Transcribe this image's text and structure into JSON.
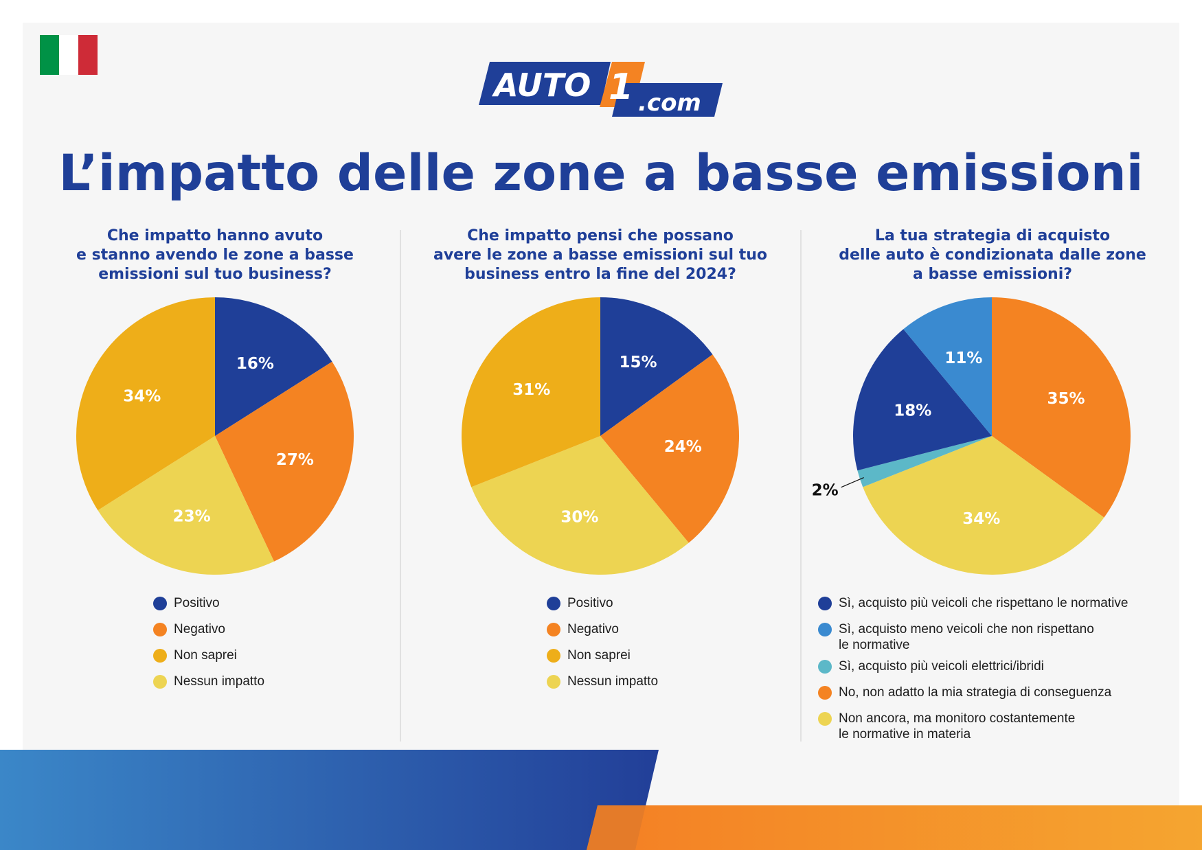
{
  "logo": {
    "brand": "AUTO",
    "number": "1",
    "domain": ".com"
  },
  "title": "L’impatto delle zone a basse emissioni",
  "colors": {
    "dark_blue": "#1f3f98",
    "light_blue": "#3a8ad0",
    "teal": "#5cb8c8",
    "orange": "#f48322",
    "amber": "#eeae19",
    "yellow": "#edd452",
    "flag_green": "#009246",
    "flag_white": "#ffffff",
    "flag_red": "#ce2b37"
  },
  "chart_data": [
    {
      "type": "pie",
      "title_lines": [
        "Che impatto hanno avuto",
        "e stanno avendo le zone a basse",
        "emissioni sul tuo business?"
      ],
      "categories": [
        "Positivo",
        "Negativo",
        "Nessun impatto",
        "Non saprei"
      ],
      "values": [
        16,
        27,
        23,
        34
      ],
      "labels": [
        "16%",
        "27%",
        "23%",
        "34%"
      ],
      "colors": [
        "#1f3f98",
        "#f48322",
        "#edd452",
        "#eeae19"
      ],
      "legend": [
        {
          "label_lines": [
            "Positivo"
          ],
          "color": "#1f3f98"
        },
        {
          "label_lines": [
            "Negativo"
          ],
          "color": "#f48322"
        },
        {
          "label_lines": [
            "Non saprei"
          ],
          "color": "#eeae19"
        },
        {
          "label_lines": [
            "Nessun impatto"
          ],
          "color": "#edd452"
        }
      ]
    },
    {
      "type": "pie",
      "title_lines": [
        "Che impatto pensi che possano",
        "avere le zone a basse emissioni sul tuo",
        "business entro la fine del 2024?"
      ],
      "categories": [
        "Positivo",
        "Negativo",
        "Nessun impatto",
        "Non saprei"
      ],
      "values": [
        15,
        24,
        30,
        31
      ],
      "labels": [
        "15%",
        "24%",
        "30%",
        "31%"
      ],
      "colors": [
        "#1f3f98",
        "#f48322",
        "#edd452",
        "#eeae19"
      ],
      "legend": [
        {
          "label_lines": [
            "Positivo"
          ],
          "color": "#1f3f98"
        },
        {
          "label_lines": [
            "Negativo"
          ],
          "color": "#f48322"
        },
        {
          "label_lines": [
            "Non saprei"
          ],
          "color": "#eeae19"
        },
        {
          "label_lines": [
            "Nessun impatto"
          ],
          "color": "#edd452"
        }
      ]
    },
    {
      "type": "pie",
      "title_lines": [
        "La tua strategia di acquisto",
        "delle auto è condizionata dalle zone",
        "a basse emissioni?"
      ],
      "categories": [
        "No, non adatto la mia strategia di conseguenza",
        "Non ancora, ma monitoro costantemente le normative in materia",
        "Sì, acquisto più veicoli elettrici/ibridi",
        "Sì, acquisto più veicoli che rispettano le normative",
        "Sì, acquisto meno veicoli che non rispettano le normative"
      ],
      "values": [
        35,
        34,
        2,
        18,
        11
      ],
      "labels": [
        "35%",
        "34%",
        "2%",
        "18%",
        "11%"
      ],
      "colors": [
        "#f48322",
        "#edd452",
        "#5cb8c8",
        "#1f3f98",
        "#3a8ad0"
      ],
      "legend": [
        {
          "label_lines": [
            "Sì, acquisto più veicoli che rispettano le normative"
          ],
          "color": "#1f3f98"
        },
        {
          "label_lines": [
            "Sì, acquisto meno veicoli che non rispettano",
            "le normative"
          ],
          "color": "#3a8ad0"
        },
        {
          "label_lines": [
            "Sì, acquisto più veicoli elettrici/ibridi"
          ],
          "color": "#5cb8c8"
        },
        {
          "label_lines": [
            "No, non adatto la mia strategia di conseguenza"
          ],
          "color": "#f48322"
        },
        {
          "label_lines": [
            "Non ancora, ma monitoro costantemente",
            "le normative in materia"
          ],
          "color": "#edd452"
        }
      ]
    }
  ]
}
